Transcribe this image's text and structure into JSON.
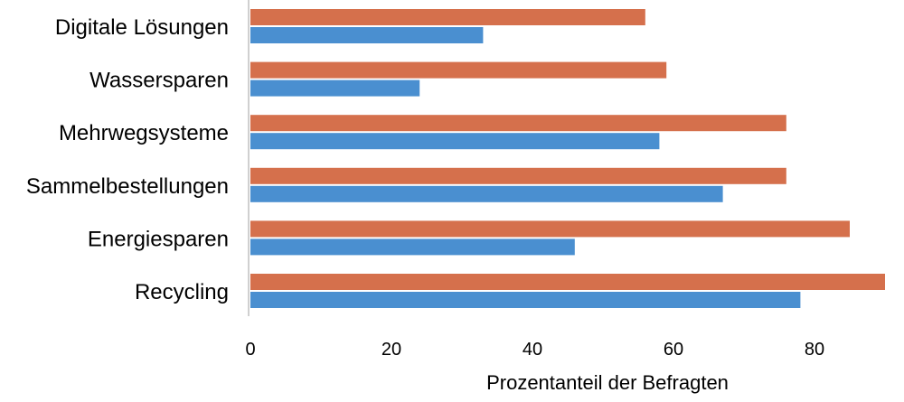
{
  "chart_data": {
    "type": "bar",
    "orientation": "horizontal",
    "categories": [
      "Digitale Lösungen",
      "Wassersparen",
      "Mehrwegsysteme",
      "Sammelbestellungen",
      "Energiesparen",
      "Recycling"
    ],
    "series": [
      {
        "color": "#D5704C",
        "values": [
          56,
          59,
          76,
          76,
          85,
          90
        ]
      },
      {
        "color": "#4A8FD0",
        "values": [
          33,
          24,
          58,
          67,
          46,
          78
        ]
      }
    ],
    "xlabel": "Prozentanteil der Befragten",
    "ylabel": "",
    "xticks": [
      "0",
      "20",
      "40",
      "60",
      "80"
    ],
    "xlim": [
      0,
      90
    ],
    "grid": false,
    "legend": "none"
  }
}
